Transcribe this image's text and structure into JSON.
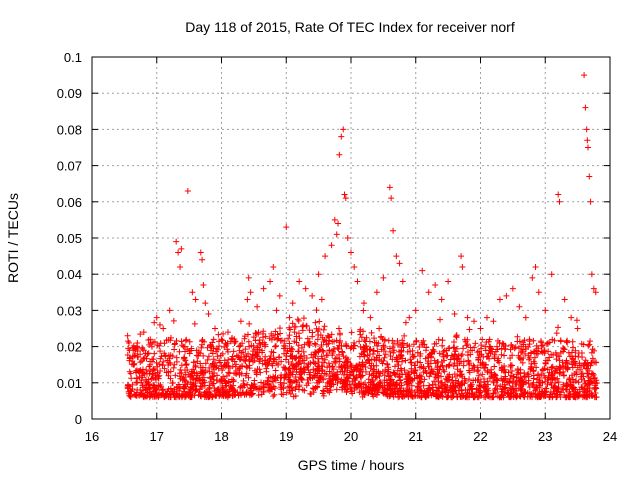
{
  "chart_data": {
    "type": "scatter",
    "title": "Day 118 of 2015, Rate Of TEC Index for receiver norf",
    "xlabel": "GPS time / hours",
    "ylabel": "ROTI / TECUs",
    "xlim": [
      16,
      24
    ],
    "ylim": [
      0,
      0.1
    ],
    "grid": true,
    "marker": "+",
    "color": "#ff0000",
    "x_tick_labels": [
      "16",
      "17",
      "18",
      "19",
      "20",
      "21",
      "22",
      "23",
      "24"
    ],
    "y_tick_labels": [
      "0",
      "0.01",
      "0.02",
      "0.03",
      "0.04",
      "0.05",
      "0.06",
      "0.07",
      "0.08",
      "0.09",
      "0.1"
    ],
    "x_ticks": [
      16,
      17,
      18,
      19,
      20,
      21,
      22,
      23,
      24
    ],
    "y_ticks": [
      0,
      0.01,
      0.02,
      0.03,
      0.04,
      0.05,
      0.06,
      0.07,
      0.08,
      0.09,
      0.1
    ],
    "series": [
      {
        "name": "ROTI",
        "points": [
          [
            16.55,
            0.023
          ],
          [
            16.58,
            0.019
          ],
          [
            16.62,
            0.016
          ],
          [
            16.7,
            0.021
          ],
          [
            16.8,
            0.024
          ],
          [
            16.9,
            0.022
          ],
          [
            17.0,
            0.028
          ],
          [
            17.05,
            0.026
          ],
          [
            17.1,
            0.025
          ],
          [
            17.2,
            0.03
          ],
          [
            17.3,
            0.049
          ],
          [
            17.33,
            0.046
          ],
          [
            17.36,
            0.042
          ],
          [
            17.38,
            0.047
          ],
          [
            17.48,
            0.063
          ],
          [
            17.55,
            0.035
          ],
          [
            17.6,
            0.033
          ],
          [
            17.68,
            0.046
          ],
          [
            17.7,
            0.044
          ],
          [
            17.72,
            0.037
          ],
          [
            17.75,
            0.032
          ],
          [
            17.8,
            0.029
          ],
          [
            17.9,
            0.025
          ],
          [
            18.0,
            0.022
          ],
          [
            18.1,
            0.024
          ],
          [
            18.2,
            0.021
          ],
          [
            18.3,
            0.027
          ],
          [
            18.4,
            0.033
          ],
          [
            18.42,
            0.039
          ],
          [
            18.45,
            0.035
          ],
          [
            18.55,
            0.031
          ],
          [
            18.65,
            0.036
          ],
          [
            18.75,
            0.038
          ],
          [
            18.8,
            0.042
          ],
          [
            18.85,
            0.03
          ],
          [
            18.9,
            0.034
          ],
          [
            19.0,
            0.053
          ],
          [
            19.05,
            0.028
          ],
          [
            19.1,
            0.032
          ],
          [
            19.2,
            0.038
          ],
          [
            19.3,
            0.036
          ],
          [
            19.4,
            0.034
          ],
          [
            19.5,
            0.04
          ],
          [
            19.55,
            0.033
          ],
          [
            19.6,
            0.045
          ],
          [
            19.7,
            0.048
          ],
          [
            19.75,
            0.055
          ],
          [
            19.78,
            0.051
          ],
          [
            19.8,
            0.054
          ],
          [
            19.82,
            0.073
          ],
          [
            19.85,
            0.078
          ],
          [
            19.88,
            0.08
          ],
          [
            19.9,
            0.062
          ],
          [
            19.92,
            0.061
          ],
          [
            19.95,
            0.05
          ],
          [
            20.0,
            0.046
          ],
          [
            20.05,
            0.042
          ],
          [
            20.1,
            0.038
          ],
          [
            20.2,
            0.032
          ],
          [
            20.3,
            0.028
          ],
          [
            20.4,
            0.035
          ],
          [
            20.5,
            0.039
          ],
          [
            20.6,
            0.064
          ],
          [
            20.62,
            0.061
          ],
          [
            20.65,
            0.052
          ],
          [
            20.7,
            0.045
          ],
          [
            20.75,
            0.043
          ],
          [
            20.8,
            0.038
          ],
          [
            20.9,
            0.028
          ],
          [
            21.0,
            0.03
          ],
          [
            21.1,
            0.041
          ],
          [
            21.2,
            0.035
          ],
          [
            21.3,
            0.037
          ],
          [
            21.4,
            0.033
          ],
          [
            21.5,
            0.038
          ],
          [
            21.6,
            0.029
          ],
          [
            21.7,
            0.045
          ],
          [
            21.72,
            0.042
          ],
          [
            21.8,
            0.028
          ],
          [
            21.9,
            0.027
          ],
          [
            22.0,
            0.025
          ],
          [
            22.1,
            0.028
          ],
          [
            22.2,
            0.027
          ],
          [
            22.3,
            0.033
          ],
          [
            22.4,
            0.034
          ],
          [
            22.5,
            0.036
          ],
          [
            22.6,
            0.031
          ],
          [
            22.7,
            0.028
          ],
          [
            22.8,
            0.039
          ],
          [
            22.85,
            0.042
          ],
          [
            22.9,
            0.035
          ],
          [
            23.0,
            0.03
          ],
          [
            23.1,
            0.04
          ],
          [
            23.2,
            0.062
          ],
          [
            23.22,
            0.06
          ],
          [
            23.3,
            0.033
          ],
          [
            23.4,
            0.028
          ],
          [
            23.5,
            0.025
          ],
          [
            23.6,
            0.095
          ],
          [
            23.62,
            0.086
          ],
          [
            23.64,
            0.08
          ],
          [
            23.65,
            0.077
          ],
          [
            23.66,
            0.075
          ],
          [
            23.68,
            0.067
          ],
          [
            23.7,
            0.06
          ],
          [
            23.72,
            0.04
          ],
          [
            23.75,
            0.036
          ],
          [
            23.78,
            0.035
          ]
        ],
        "dense_band": {
          "x_range": [
            16.55,
            23.8
          ],
          "y_range": [
            0.003,
            0.025
          ],
          "description_values": "majority of ROTI samples between 0.005 and 0.02 TECU/min"
        }
      }
    ]
  }
}
